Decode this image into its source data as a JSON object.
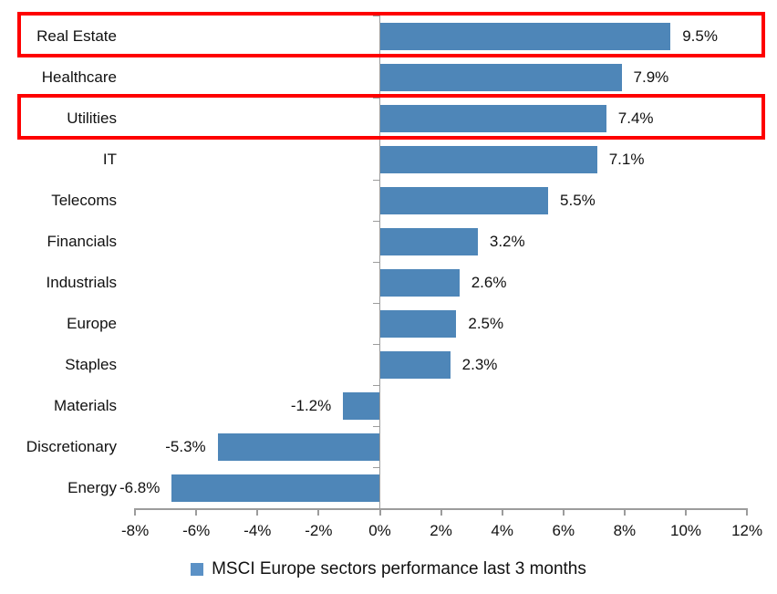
{
  "chart_data": {
    "type": "bar",
    "orientation": "horizontal",
    "categories": [
      "Real Estate",
      "Healthcare",
      "Utilities",
      "IT",
      "Telecoms",
      "Financials",
      "Industrials",
      "Europe",
      "Staples",
      "Materials",
      "Discretionary",
      "Energy"
    ],
    "values": [
      9.5,
      7.9,
      7.4,
      7.1,
      5.5,
      3.2,
      2.6,
      2.5,
      2.3,
      -1.2,
      -5.3,
      -6.8
    ],
    "value_labels": [
      "9.5%",
      "7.9%",
      "7.4%",
      "7.1%",
      "5.5%",
      "3.2%",
      "2.6%",
      "2.5%",
      "2.3%",
      "-1.2%",
      "-5.3%",
      "-6.8%"
    ],
    "x_ticks": [
      "-8%",
      "-6%",
      "-4%",
      "-2%",
      "0%",
      "2%",
      "4%",
      "6%",
      "8%",
      "10%",
      "12%"
    ],
    "x_range": [
      -8,
      12
    ],
    "x_tick_step": 2,
    "grid": "off",
    "legend": "MSCI Europe sectors performance last 3 months",
    "legend_position": "bottom",
    "highlighted_categories": [
      "Real Estate",
      "Utilities"
    ],
    "title": "",
    "xlabel": "",
    "ylabel": ""
  },
  "colors": {
    "bar": "#4e86b8",
    "legend_marker": "#5b91c6",
    "highlight_box": "#fe0000",
    "axis": "#9c9c9c",
    "text": "#111111"
  }
}
